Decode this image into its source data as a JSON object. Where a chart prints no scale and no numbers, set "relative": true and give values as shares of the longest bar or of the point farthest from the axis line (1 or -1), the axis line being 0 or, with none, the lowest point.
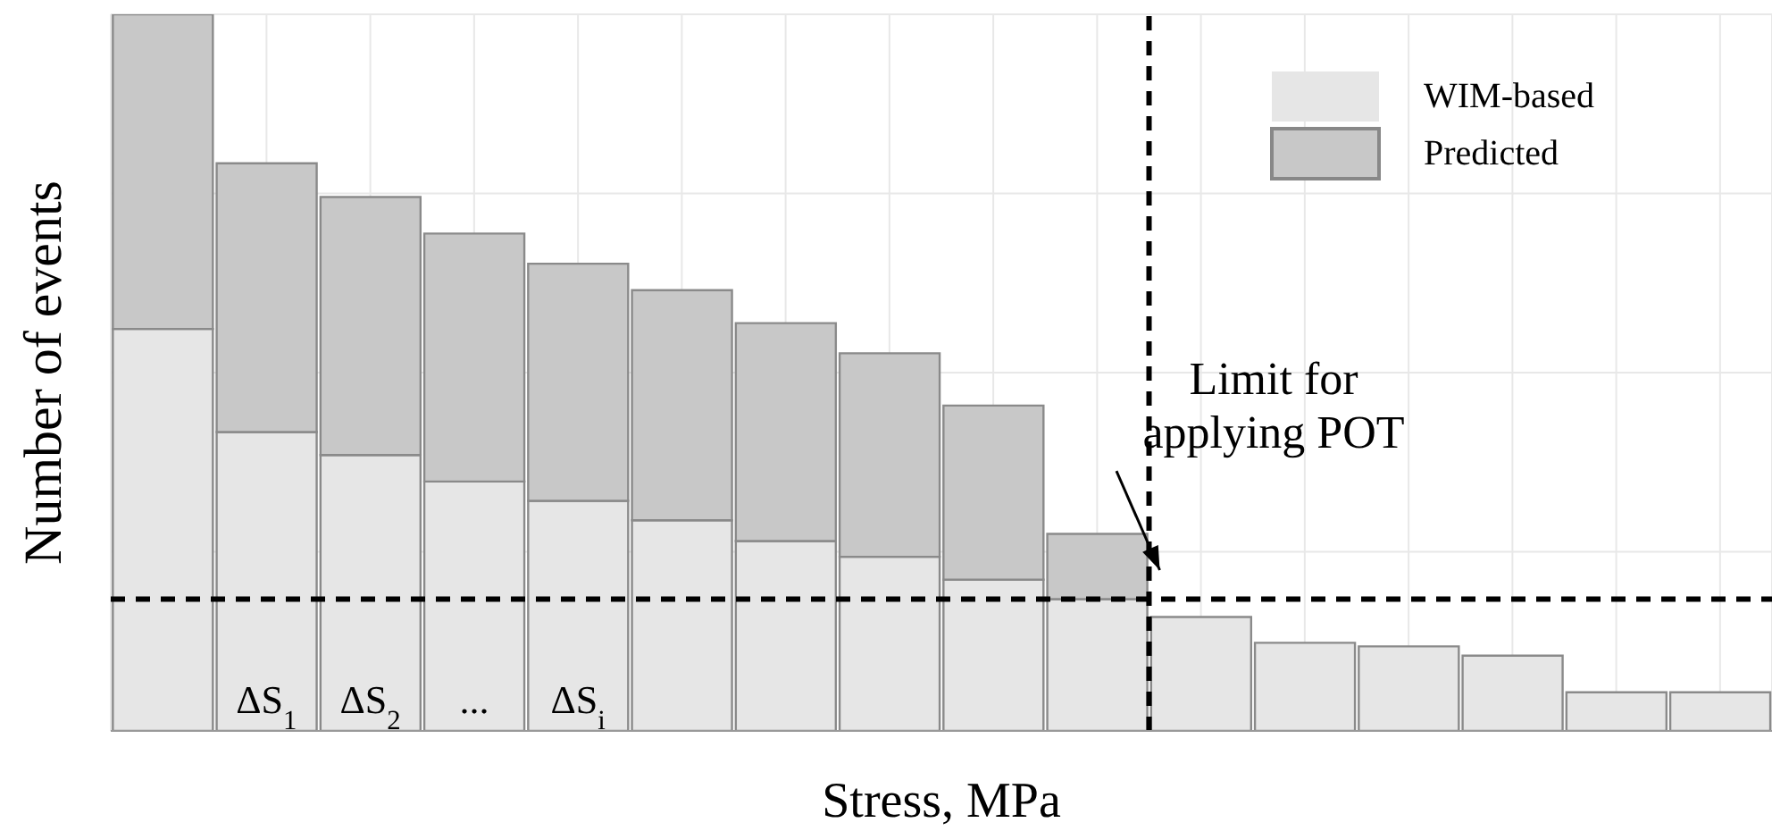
{
  "chart_data": {
    "type": "bar",
    "stacked": true,
    "relative": true,
    "xlabel": "Stress, MPa",
    "ylabel": "Number of events",
    "categories": [
      null,
      null,
      null,
      null,
      null,
      null,
      null,
      null,
      null,
      null,
      null,
      null,
      null,
      null,
      null,
      null
    ],
    "series": [
      {
        "name": "WIM-based",
        "color": "#e6e6e6",
        "values": [
          0.561,
          0.417,
          0.385,
          0.348,
          0.321,
          0.294,
          0.265,
          0.243,
          0.211,
          0.184,
          0.159,
          0.123,
          0.118,
          0.105,
          0.054,
          0.054
        ]
      },
      {
        "name": "Predicted",
        "color": "#c8c8c8",
        "values": [
          0.439,
          0.375,
          0.36,
          0.346,
          0.331,
          0.321,
          0.304,
          0.284,
          0.243,
          0.091,
          null,
          null,
          null,
          null,
          null,
          null
        ]
      }
    ],
    "ref_lines": [
      {
        "axis": "y",
        "value": 0.184,
        "line_style": "dashed",
        "color": "#000000"
      }
    ],
    "annotations": [
      "ΔS$_{1}$",
      "ΔS$_{2}$",
      "...",
      "ΔS$_{i}$",
      "Limit for\napplying POT"
    ],
    "grid": true,
    "legend": "top right"
  }
}
